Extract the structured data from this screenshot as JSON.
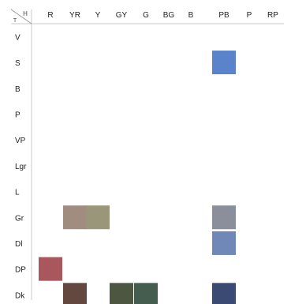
{
  "chart_data": {
    "type": "heatmap",
    "title": "",
    "xlabel": "",
    "ylabel": "",
    "corner_label": {
      "top": "H",
      "bottom": "T"
    },
    "hue_columns": [
      "R",
      "YR",
      "Y",
      "GY",
      "G",
      "BG",
      "B",
      "PB",
      "P",
      "RP"
    ],
    "tone_rows": [
      "V",
      "S",
      "B",
      "P",
      "VP",
      "Lgr",
      "L",
      "Gr",
      "Dl",
      "DP",
      "Dk"
    ],
    "grid": false,
    "cells": [
      {
        "hue": "PB",
        "tone": "S",
        "color": "#5b83cc"
      },
      {
        "hue": "YR",
        "tone": "Gr",
        "color": "#a08d80"
      },
      {
        "hue": "Y",
        "tone": "Gr",
        "color": "#9a9679"
      },
      {
        "hue": "PB",
        "tone": "Gr",
        "color": "#8b8f9c"
      },
      {
        "hue": "PB",
        "tone": "Dl",
        "color": "#6f88b8"
      },
      {
        "hue": "R",
        "tone": "DP",
        "color": "#a9565d"
      },
      {
        "hue": "YR",
        "tone": "Dk",
        "color": "#62483e"
      },
      {
        "hue": "GY",
        "tone": "Dk",
        "color": "#4d5640"
      },
      {
        "hue": "G",
        "tone": "Dk",
        "color": "#445d4f"
      },
      {
        "hue": "PB",
        "tone": "Dk",
        "color": "#3b4a72"
      }
    ]
  }
}
